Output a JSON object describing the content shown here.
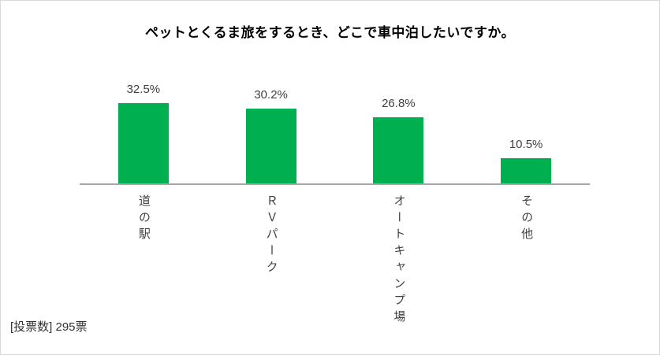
{
  "frame": {
    "background": "#ffffff",
    "border_color": "#d9d9d9"
  },
  "chart_data": {
    "type": "bar",
    "title": "ペットとくるま旅をするとき、どこで車中泊したいですか。",
    "categories": [
      "道の駅",
      "ＲＶパーク",
      "オートキャンプ場",
      "その他"
    ],
    "values": [
      32.5,
      30.2,
      26.8,
      10.5
    ],
    "value_labels": [
      "32.5%",
      "30.2%",
      "26.8%",
      "10.5%"
    ],
    "unit": "%",
    "orientation": "vertical",
    "category_label_orientation": "vertical-text",
    "grid": false,
    "legend": false,
    "ylim": [
      0,
      35
    ],
    "xlabel": "",
    "ylabel": "",
    "bar_color": "#00B050",
    "axis_color": "#A6A6A6",
    "value_label_color": "#404040",
    "category_label_color": "#404040",
    "title_color": "#000000"
  },
  "footer": {
    "votes_label": "[投票数] 295票"
  }
}
